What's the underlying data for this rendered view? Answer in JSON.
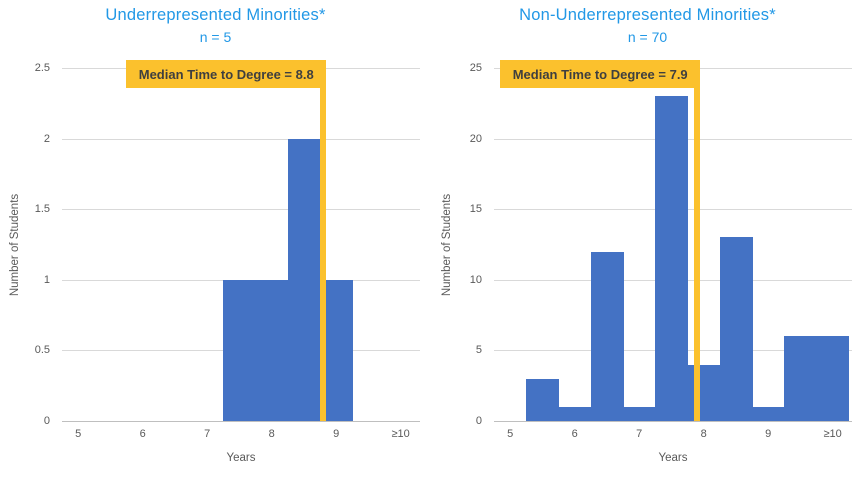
{
  "page": {
    "background": "#FFFFFF"
  },
  "colors": {
    "bar_fill": "#4472C4",
    "median_gold": "#FBC12D",
    "title_blue": "#2298E6",
    "axis_text": "#595959",
    "gridline": "#D9D9D9",
    "axis_line": "#BFBFBF",
    "annotation_text": "#3F3F3F"
  },
  "chart_data": [
    {
      "type": "bar",
      "title": "Underrepresented Minorities*",
      "subtitle": "n = 5",
      "n": 5,
      "xlabel": "Years",
      "ylabel": "Number of Students",
      "legend": "none",
      "grid": "horizontal",
      "xlim": [
        4.75,
        10.3
      ],
      "ylim": [
        0,
        2.5
      ],
      "x_ticks": [
        {
          "value": 5,
          "label": "5"
        },
        {
          "value": 6,
          "label": "6"
        },
        {
          "value": 7,
          "label": "7"
        },
        {
          "value": 8,
          "label": "8"
        },
        {
          "value": 9,
          "label": "9"
        },
        {
          "value": 10,
          "label": "≥10"
        }
      ],
      "y_ticks": [
        {
          "value": 0,
          "label": "0"
        },
        {
          "value": 0.5,
          "label": "0.5"
        },
        {
          "value": 1,
          "label": "1"
        },
        {
          "value": 1.5,
          "label": "1.5"
        },
        {
          "value": 2,
          "label": "2"
        },
        {
          "value": 2.5,
          "label": "2.5"
        }
      ],
      "bin_width": 0.5,
      "bins": [
        {
          "center": 7.5,
          "count": 1
        },
        {
          "center": 8.0,
          "count": 1
        },
        {
          "center": 8.5,
          "count": 2
        },
        {
          "center": 9.0,
          "count": 1
        }
      ],
      "median": 8.8,
      "median_label": "Median Time to Degree = 8.8"
    },
    {
      "type": "bar",
      "title": "Non-Underrepresented Minorities*",
      "subtitle": "n = 70",
      "n": 70,
      "xlabel": "Years",
      "ylabel": "Number of Students",
      "legend": "none",
      "grid": "horizontal",
      "xlim": [
        4.75,
        10.3
      ],
      "ylim": [
        0,
        25
      ],
      "x_ticks": [
        {
          "value": 5,
          "label": "5"
        },
        {
          "value": 6,
          "label": "6"
        },
        {
          "value": 7,
          "label": "7"
        },
        {
          "value": 8,
          "label": "8"
        },
        {
          "value": 9,
          "label": "9"
        },
        {
          "value": 10,
          "label": "≥10"
        }
      ],
      "y_ticks": [
        {
          "value": 0,
          "label": "0"
        },
        {
          "value": 5,
          "label": "5"
        },
        {
          "value": 10,
          "label": "10"
        },
        {
          "value": 15,
          "label": "15"
        },
        {
          "value": 20,
          "label": "20"
        },
        {
          "value": 25,
          "label": "25"
        }
      ],
      "bin_width": 0.5,
      "bins": [
        {
          "center": 5.5,
          "count": 3
        },
        {
          "center": 6.0,
          "count": 1
        },
        {
          "center": 6.5,
          "count": 12
        },
        {
          "center": 7.0,
          "count": 1
        },
        {
          "center": 7.5,
          "count": 23
        },
        {
          "center": 8.0,
          "count": 4
        },
        {
          "center": 8.5,
          "count": 13
        },
        {
          "center": 9.0,
          "count": 1
        },
        {
          "center": 9.5,
          "count": 6
        },
        {
          "center": 10.0,
          "count": 6
        }
      ],
      "median": 7.9,
      "median_label": "Median Time to Degree = 7.9"
    }
  ]
}
